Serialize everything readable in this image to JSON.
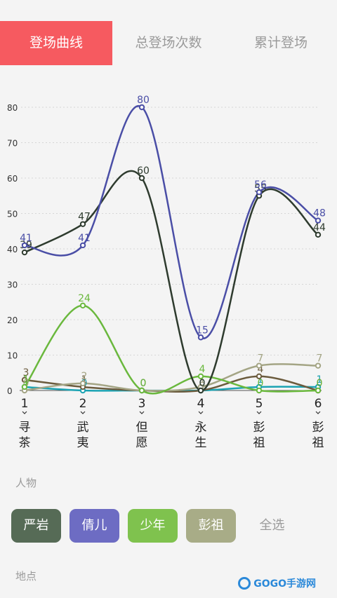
{
  "tabs": [
    {
      "label": "登场曲线",
      "active": true
    },
    {
      "label": "总登场次数",
      "active": false
    },
    {
      "label": "累计登场",
      "active": false
    }
  ],
  "chart_data": {
    "type": "line",
    "x": [
      1,
      2,
      3,
      4,
      5,
      6
    ],
    "x_tick_labels": [
      "1",
      "2",
      "3",
      "4",
      "5",
      "6"
    ],
    "categories": [
      "寻茶",
      "武夷",
      "但愿",
      "永生",
      "彭祖",
      "彭祖"
    ],
    "ylim": [
      0,
      80
    ],
    "y_ticks": [
      0,
      10,
      20,
      30,
      40,
      50,
      60,
      70,
      80
    ],
    "grid": true,
    "series": [
      {
        "name": "倩儿",
        "color": "#4a4ea6",
        "values": [
          41,
          41,
          80,
          15,
          56,
          48
        ]
      },
      {
        "name": "严岩",
        "color": "#2e3b2e",
        "values": [
          39,
          47,
          60,
          0,
          55,
          44
        ]
      },
      {
        "name": "少年",
        "color": "#6ab83d",
        "values": [
          1,
          24,
          0,
          4,
          0,
          0
        ]
      },
      {
        "name": "彭祖",
        "color": "#a4a585",
        "values": [
          0,
          2,
          0,
          1,
          7,
          7
        ]
      },
      {
        "name": "",
        "color": "#6b5b3d",
        "values": [
          3,
          1,
          0,
          0,
          4,
          0
        ]
      },
      {
        "name": "",
        "color": "#1ba3b3",
        "values": [
          1,
          0,
          0,
          0,
          1,
          1
        ]
      }
    ]
  },
  "people_label": "人物",
  "people_buttons": [
    {
      "label": "严岩",
      "color": "#566b56"
    },
    {
      "label": "倩儿",
      "color": "#6d6cc3"
    },
    {
      "label": "少年",
      "color": "#7fc24e"
    },
    {
      "label": "彭祖",
      "color": "#a8ac87"
    },
    {
      "label": "全选",
      "color": ""
    }
  ],
  "place_label": "地点",
  "watermark": "GOGO手游网"
}
